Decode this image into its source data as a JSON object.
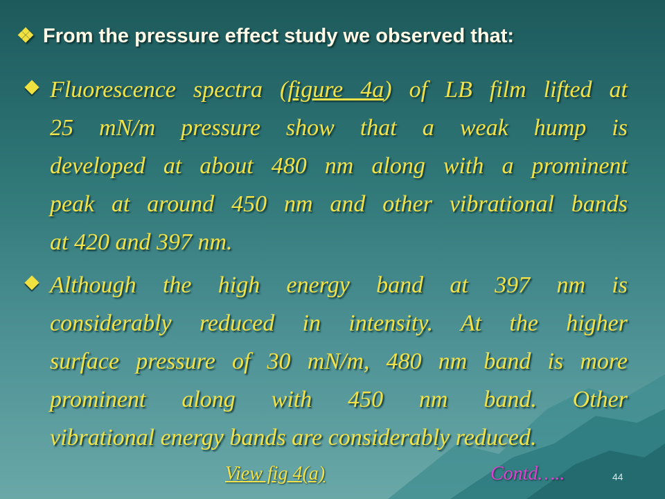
{
  "heading": {
    "symbol": "❖",
    "text": "From the pressure effect study we observed that:"
  },
  "bullets": [
    {
      "lines": [
        [
          "Fluorescence spectra (",
          "figure 4a",
          ") of LB film lifted at"
        ],
        "25 mN/m pressure show that a weak hump is",
        "developed at about 480 nm along with a prominent",
        "peak at around 450 nm and other vibrational bands",
        "at 420 and 397 nm."
      ]
    },
    {
      "lines": [
        "Although the high energy band at 397 nm is",
        "considerably reduced in intensity. At the higher",
        "surface pressure of 30 mN/m, 480 nm band is more",
        "prominent along with 450 nm band. Other",
        "vibrational energy bands are considerably reduced."
      ]
    }
  ],
  "links": {
    "view": "View fig 4(a)",
    "contd": "Contd….."
  },
  "page_number": "44"
}
